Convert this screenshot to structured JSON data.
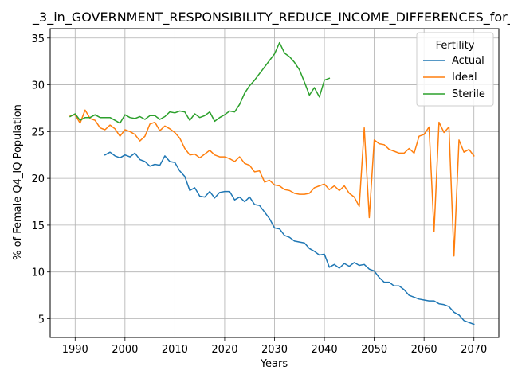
{
  "chart_data": {
    "type": "line",
    "title": "_3_in_GOVERNMENT_RESPONSIBILITY_REDUCE_INCOME_DIFFERENCES_for_Fe",
    "xlabel": "Years",
    "ylabel": "% of Female Q4_IQ Population",
    "xlim": [
      1985,
      2075
    ],
    "ylim": [
      3,
      36
    ],
    "xticks": [
      1990,
      2000,
      2010,
      2020,
      2030,
      2040,
      2050,
      2060,
      2070
    ],
    "yticks": [
      5,
      10,
      15,
      20,
      25,
      30,
      35
    ],
    "grid": true,
    "legend": {
      "title": "Fertility",
      "placement": "top-right"
    },
    "series": [
      {
        "name": "Actual",
        "color": "#1f77b4",
        "x": [
          1996,
          1997,
          1998,
          1999,
          2000,
          2001,
          2002,
          2003,
          2004,
          2005,
          2006,
          2007,
          2008,
          2009,
          2010,
          2011,
          2012,
          2013,
          2014,
          2015,
          2016,
          2017,
          2018,
          2019,
          2020,
          2021,
          2022,
          2023,
          2024,
          2025,
          2026,
          2027,
          2028,
          2029,
          2030,
          2031,
          2032,
          2033,
          2034,
          2035,
          2036,
          2037,
          2038,
          2039,
          2040,
          2041,
          2042,
          2043,
          2044,
          2045,
          2046,
          2047,
          2048,
          2049,
          2050,
          2051,
          2052,
          2053,
          2054,
          2055,
          2056,
          2057,
          2058,
          2059,
          2060,
          2061,
          2062,
          2063,
          2064,
          2065,
          2066,
          2067,
          2068,
          2069,
          2070
        ],
        "y": [
          22.5,
          22.8,
          22.4,
          22.2,
          22.5,
          22.3,
          22.7,
          22.0,
          21.8,
          21.3,
          21.5,
          21.4,
          22.4,
          21.8,
          21.7,
          20.8,
          20.2,
          18.7,
          19.0,
          18.1,
          18.0,
          18.6,
          17.9,
          18.5,
          18.6,
          18.6,
          17.7,
          18.0,
          17.5,
          18.0,
          17.2,
          17.1,
          16.4,
          15.7,
          14.7,
          14.6,
          13.9,
          13.7,
          13.3,
          13.2,
          13.1,
          12.5,
          12.2,
          11.8,
          11.9,
          10.5,
          10.8,
          10.4,
          10.9,
          10.6,
          11.0,
          10.7,
          10.8,
          10.3,
          10.1,
          9.4,
          8.9,
          8.9,
          8.5,
          8.5,
          8.1,
          7.5,
          7.3,
          7.1,
          7.0,
          6.9,
          6.9,
          6.6,
          6.5,
          6.3,
          5.7,
          5.4,
          4.8,
          4.6,
          4.4
        ]
      },
      {
        "name": "Ideal",
        "color": "#ff7f0e",
        "x": [
          1989,
          1990,
          1991,
          1992,
          1993,
          1994,
          1995,
          1996,
          1997,
          1998,
          1999,
          2000,
          2001,
          2002,
          2003,
          2004,
          2005,
          2006,
          2007,
          2008,
          2009,
          2010,
          2011,
          2012,
          2013,
          2014,
          2015,
          2016,
          2017,
          2018,
          2019,
          2020,
          2021,
          2022,
          2023,
          2024,
          2025,
          2026,
          2027,
          2028,
          2029,
          2030,
          2031,
          2032,
          2033,
          2034,
          2035,
          2036,
          2037,
          2038,
          2039,
          2040,
          2041,
          2042,
          2043,
          2044,
          2045,
          2046,
          2047,
          2048,
          2049,
          2050,
          2051,
          2052,
          2053,
          2054,
          2055,
          2056,
          2057,
          2058,
          2059,
          2060,
          2061,
          2062,
          2063,
          2064,
          2065,
          2066,
          2067,
          2068,
          2069,
          2070
        ],
        "y": [
          26.7,
          26.8,
          25.9,
          27.3,
          26.4,
          26.2,
          25.4,
          25.2,
          25.7,
          25.3,
          24.5,
          25.2,
          25.0,
          24.7,
          24.0,
          24.5,
          25.8,
          26.0,
          25.1,
          25.6,
          25.3,
          24.9,
          24.3,
          23.2,
          22.5,
          22.6,
          22.2,
          22.6,
          23.0,
          22.5,
          22.3,
          22.3,
          22.1,
          21.8,
          22.3,
          21.6,
          21.4,
          20.7,
          20.8,
          19.6,
          19.8,
          19.3,
          19.2,
          18.8,
          18.7,
          18.4,
          18.3,
          18.3,
          18.4,
          19.0,
          19.2,
          19.4,
          18.8,
          19.2,
          18.7,
          19.2,
          18.4,
          18.0,
          17.0,
          25.4,
          15.8,
          24.1,
          23.7,
          23.6,
          23.1,
          22.9,
          22.7,
          22.7,
          23.2,
          22.7,
          24.5,
          24.7,
          25.5,
          14.3,
          26.0,
          24.9,
          25.5,
          11.7,
          24.1,
          22.8,
          23.1,
          22.4
        ]
      },
      {
        "name": "Sterile",
        "color": "#2ca02c",
        "x": [
          1989,
          1990,
          1991,
          1992,
          1993,
          1994,
          1995,
          1996,
          1997,
          1998,
          1999,
          2000,
          2001,
          2002,
          2003,
          2004,
          2005,
          2006,
          2007,
          2008,
          2009,
          2010,
          2011,
          2012,
          2013,
          2014,
          2015,
          2016,
          2017,
          2018,
          2019,
          2020,
          2021,
          2022,
          2023,
          2024,
          2025,
          2026,
          2027,
          2028,
          2029,
          2030,
          2031,
          2032,
          2033,
          2034,
          2035,
          2036,
          2037,
          2038,
          2039,
          2040,
          2041
        ],
        "y": [
          26.6,
          26.9,
          26.2,
          26.5,
          26.5,
          26.8,
          26.5,
          26.5,
          26.5,
          26.2,
          25.9,
          26.8,
          26.5,
          26.4,
          26.6,
          26.3,
          26.7,
          26.7,
          26.3,
          26.6,
          27.1,
          27.0,
          27.2,
          27.1,
          26.2,
          26.9,
          26.5,
          26.7,
          27.1,
          26.1,
          26.5,
          26.8,
          27.2,
          27.1,
          27.9,
          29.1,
          29.9,
          30.5,
          31.2,
          31.9,
          32.6,
          33.3,
          34.5,
          33.4,
          33.0,
          32.4,
          31.6,
          30.3,
          28.9,
          29.7,
          28.7,
          30.5,
          30.7
        ]
      }
    ]
  }
}
